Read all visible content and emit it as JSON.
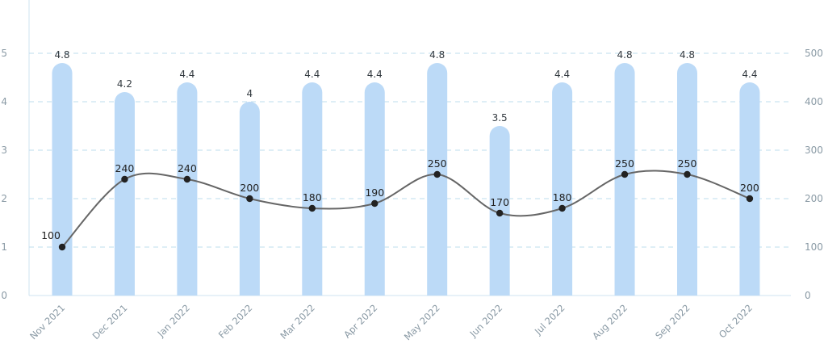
{
  "chart_data": {
    "type": "bar+line",
    "categories": [
      "Nov 2021",
      "Dec 2021",
      "Jan 2022",
      "Feb 2022",
      "Mar 2022",
      "Apr 2022",
      "May 2022",
      "Jun 2022",
      "Jul 2022",
      "Aug 2022",
      "Sep 2022",
      "Oct 2022"
    ],
    "series": [
      {
        "type": "bar",
        "axis": "left",
        "color": "#bcdaf7",
        "values": [
          4.8,
          4.2,
          4.4,
          4,
          4.4,
          4.4,
          4.8,
          3.5,
          4.4,
          4.8,
          4.8,
          4.4
        ],
        "labels": [
          "4.8",
          "4.2",
          "4.4",
          "4",
          "4.4",
          "4.4",
          "4.8",
          "3.5",
          "4.4",
          "4.8",
          "4.8",
          "4.4"
        ]
      },
      {
        "type": "line",
        "axis": "right",
        "color": "#666666",
        "smooth": true,
        "values": [
          100,
          240,
          240,
          200,
          180,
          190,
          250,
          170,
          180,
          250,
          250,
          200
        ],
        "labels": [
          "100",
          "240",
          "240",
          "200",
          "180",
          "190",
          "250",
          "170",
          "180",
          "250",
          "250",
          "200"
        ]
      }
    ],
    "y_left": {
      "ylim": [
        0,
        5
      ],
      "ticks": [
        "0",
        "1",
        "2",
        "3",
        "4",
        "5"
      ]
    },
    "y_right": {
      "ylim": [
        0,
        500
      ],
      "ticks": [
        "0",
        "100",
        "200",
        "300",
        "400",
        "500"
      ]
    },
    "grid": true,
    "legend": "none",
    "title": "",
    "xlabel": "",
    "ylabel": ""
  }
}
